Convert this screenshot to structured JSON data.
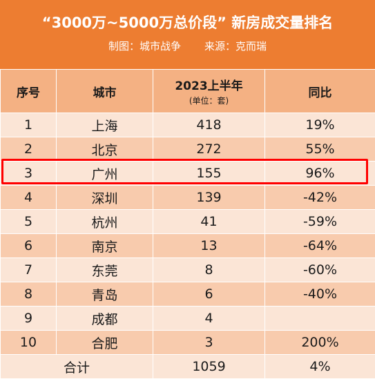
{
  "header": {
    "title": "“3000万~5000万总价段” 新房成交量排名",
    "credit": "制图：城市战争",
    "source": "来源：克而瑞"
  },
  "table": {
    "columns": [
      "序号",
      "城市",
      "2023上半年",
      "同比"
    ],
    "unit_note": "(单位：套)",
    "rows": [
      {
        "rank": "1",
        "city": "上海",
        "volume": "418",
        "yoy": "19%"
      },
      {
        "rank": "2",
        "city": "北京",
        "volume": "272",
        "yoy": "55%"
      },
      {
        "rank": "3",
        "city": "广州",
        "volume": "155",
        "yoy": "96%"
      },
      {
        "rank": "4",
        "city": "深圳",
        "volume": "139",
        "yoy": "-42%"
      },
      {
        "rank": "5",
        "city": "杭州",
        "volume": "41",
        "yoy": "-59%"
      },
      {
        "rank": "6",
        "city": "南京",
        "volume": "13",
        "yoy": "-64%"
      },
      {
        "rank": "7",
        "city": "东莞",
        "volume": "8",
        "yoy": "-60%"
      },
      {
        "rank": "8",
        "city": "青岛",
        "volume": "6",
        "yoy": "-40%"
      },
      {
        "rank": "9",
        "city": "成都",
        "volume": "4",
        "yoy": ""
      },
      {
        "rank": "10",
        "city": "合肥",
        "volume": "3",
        "yoy": "200%"
      }
    ],
    "total": {
      "label": "合计",
      "volume": "1059",
      "yoy": "4%"
    },
    "highlighted_city": "广州"
  },
  "colors": {
    "header_bg": "#ed7d31",
    "column_header_bg": "#f4b183",
    "row_light": "#fbe5d6",
    "row_dark": "#f8cbad",
    "highlight_border": "#ff0000"
  }
}
